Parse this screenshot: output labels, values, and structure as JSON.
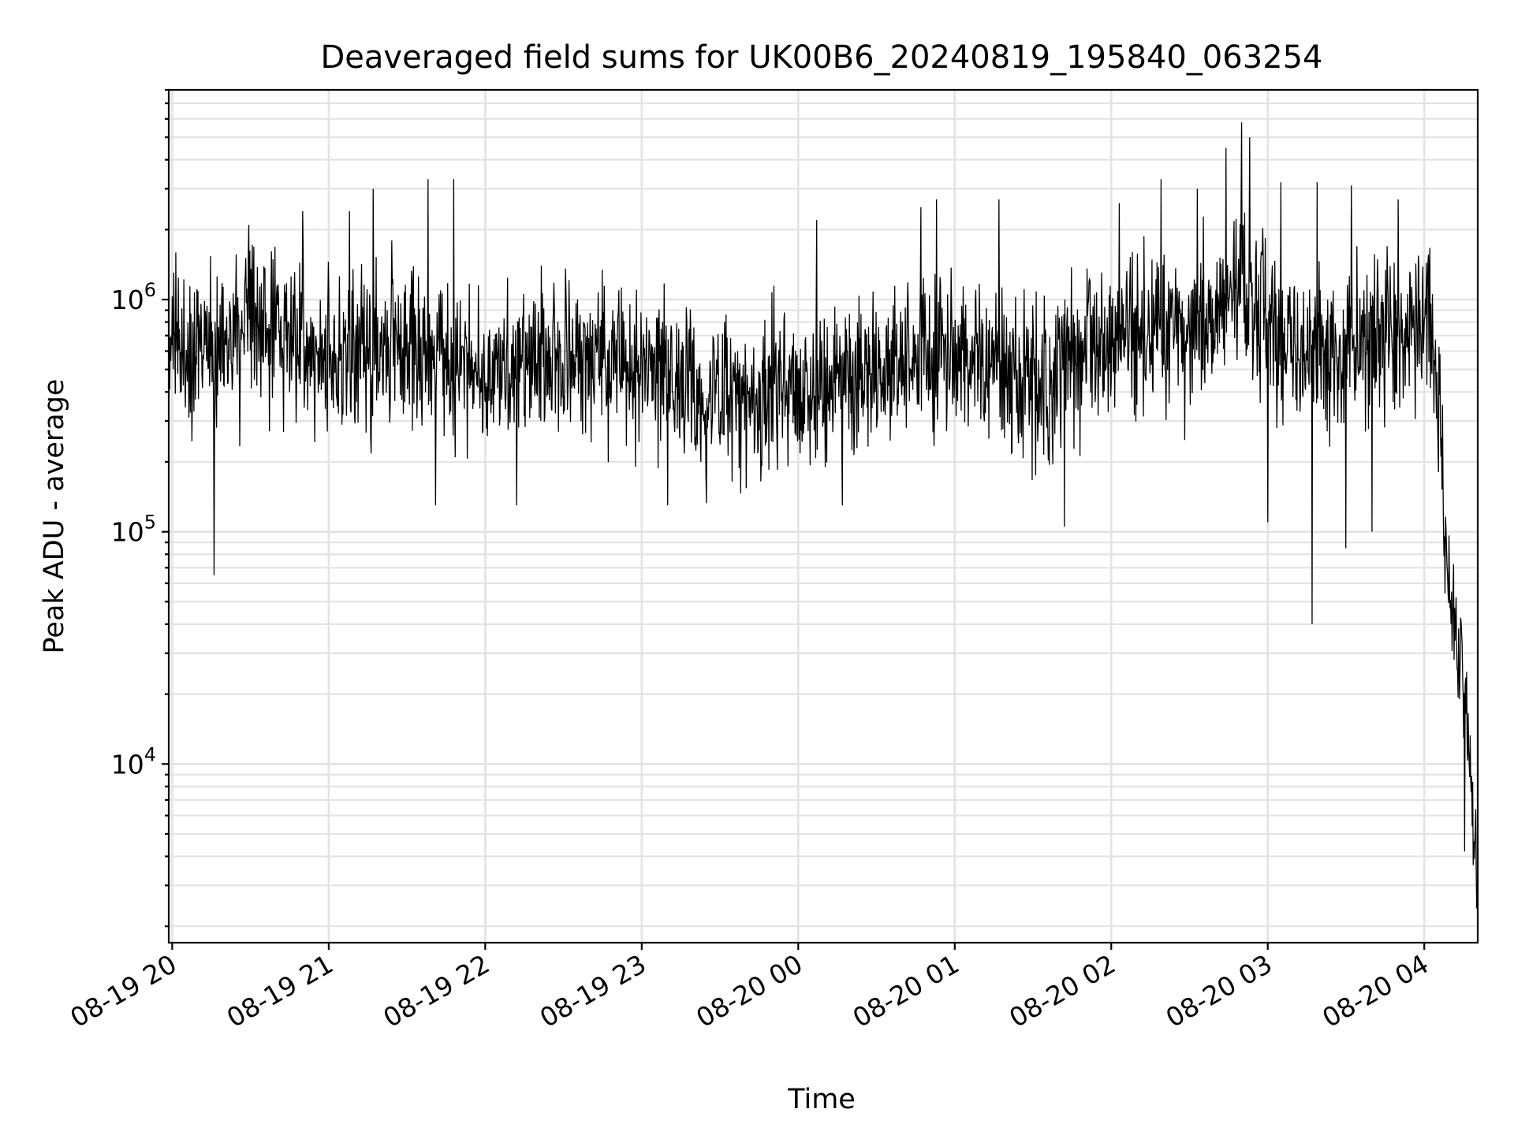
{
  "chart_data": {
    "type": "line",
    "title": "Deaveraged field sums for UK00B6_20240819_195840_063254",
    "xlabel": "Time",
    "ylabel": "Peak ADU - average",
    "yscale": "log",
    "ylim": [
      1700,
      8000000
    ],
    "xlim": [
      "2024-08-19 19:58:40",
      "2024-08-20 04:20:30"
    ],
    "x_ticks": [
      "08-19 20",
      "08-19 21",
      "08-19 22",
      "08-19 23",
      "08-20 00",
      "08-20 01",
      "08-20 02",
      "08-20 03",
      "08-20 04"
    ],
    "y_ticks": [
      {
        "value": 10000,
        "base": "10",
        "exp": "4"
      },
      {
        "value": 100000,
        "base": "10",
        "exp": "5"
      },
      {
        "value": 1000000,
        "base": "10",
        "exp": "6"
      }
    ],
    "grid": true,
    "line_color": "#000000",
    "trend": [
      {
        "t": "2024-08-19 19:58:40",
        "y": 600000
      },
      {
        "t": "2024-08-19 20:20:00",
        "y": 650000
      },
      {
        "t": "2024-08-19 20:40:00",
        "y": 800000
      },
      {
        "t": "2024-08-19 21:00:00",
        "y": 550000
      },
      {
        "t": "2024-08-19 21:30:00",
        "y": 650000
      },
      {
        "t": "2024-08-19 22:00:00",
        "y": 480000
      },
      {
        "t": "2024-08-19 22:30:00",
        "y": 560000
      },
      {
        "t": "2024-08-19 23:00:00",
        "y": 520000
      },
      {
        "t": "2024-08-19 23:20:00",
        "y": 380000
      },
      {
        "t": "2024-08-19 23:50:00",
        "y": 400000
      },
      {
        "t": "2024-08-20 00:30:00",
        "y": 520000
      },
      {
        "t": "2024-08-20 01:00:00",
        "y": 600000
      },
      {
        "t": "2024-08-20 01:30:00",
        "y": 420000
      },
      {
        "t": "2024-08-20 02:00:00",
        "y": 700000
      },
      {
        "t": "2024-08-20 02:30:00",
        "y": 650000
      },
      {
        "t": "2024-08-20 02:50:00",
        "y": 1100000
      },
      {
        "t": "2024-08-20 03:10:00",
        "y": 550000
      },
      {
        "t": "2024-08-20 03:40:00",
        "y": 650000
      },
      {
        "t": "2024-08-20 04:03:00",
        "y": 800000
      },
      {
        "t": "2024-08-20 04:06:00",
        "y": 350000
      },
      {
        "t": "2024-08-20 04:08:00",
        "y": 80000
      },
      {
        "t": "2024-08-20 04:13:00",
        "y": 35000
      },
      {
        "t": "2024-08-20 04:17:00",
        "y": 12000
      },
      {
        "t": "2024-08-20 04:20:30",
        "y": 2500
      }
    ],
    "spikes": [
      {
        "t": "2024-08-19 20:16:00",
        "y": 65000
      },
      {
        "t": "2024-08-19 20:50:00",
        "y": 2400000
      },
      {
        "t": "2024-08-19 21:08:00",
        "y": 2400000
      },
      {
        "t": "2024-08-19 21:17:00",
        "y": 3000000
      },
      {
        "t": "2024-08-19 21:38:00",
        "y": 3300000
      },
      {
        "t": "2024-08-19 21:41:00",
        "y": 130000
      },
      {
        "t": "2024-08-19 21:48:00",
        "y": 3300000
      },
      {
        "t": "2024-08-19 22:12:00",
        "y": 130000
      },
      {
        "t": "2024-08-19 23:10:00",
        "y": 130000
      },
      {
        "t": "2024-08-20 00:07:00",
        "y": 2200000
      },
      {
        "t": "2024-08-20 00:17:00",
        "y": 130000
      },
      {
        "t": "2024-08-20 00:47:00",
        "y": 2500000
      },
      {
        "t": "2024-08-20 00:53:00",
        "y": 2700000
      },
      {
        "t": "2024-08-20 01:17:00",
        "y": 2700000
      },
      {
        "t": "2024-08-20 01:42:00",
        "y": 105000
      },
      {
        "t": "2024-08-20 02:03:00",
        "y": 2600000
      },
      {
        "t": "2024-08-20 02:19:00",
        "y": 3300000
      },
      {
        "t": "2024-08-20 02:33:00",
        "y": 3000000
      },
      {
        "t": "2024-08-20 02:44:00",
        "y": 4500000
      },
      {
        "t": "2024-08-20 02:50:00",
        "y": 5800000
      },
      {
        "t": "2024-08-20 02:53:00",
        "y": 5000000
      },
      {
        "t": "2024-08-20 03:00:00",
        "y": 110000
      },
      {
        "t": "2024-08-20 03:05:00",
        "y": 3200000
      },
      {
        "t": "2024-08-20 03:17:00",
        "y": 40000
      },
      {
        "t": "2024-08-20 03:19:00",
        "y": 3200000
      },
      {
        "t": "2024-08-20 03:30:00",
        "y": 85000
      },
      {
        "t": "2024-08-20 03:32:00",
        "y": 3100000
      },
      {
        "t": "2024-08-20 03:40:00",
        "y": 100000
      },
      {
        "t": "2024-08-20 03:50:00",
        "y": 2700000
      },
      {
        "t": "2024-08-20 04:15:30",
        "y": 4200
      }
    ]
  }
}
